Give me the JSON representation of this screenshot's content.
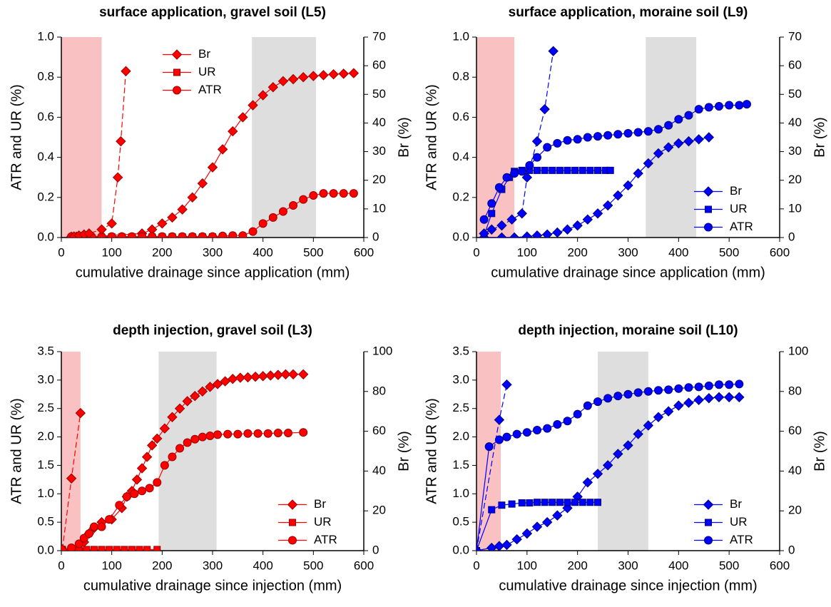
{
  "chart_data": [
    {
      "type": "line",
      "title": "surface application, gravel soil (L5)",
      "xlabel": "cumulative drainage since application (mm)",
      "ylabel": "ATR and UR (%)",
      "y2label": "Br (%)",
      "xlim": [
        0,
        600
      ],
      "xticks": [
        0,
        100,
        200,
        300,
        400,
        500,
        600
      ],
      "ylim": [
        0,
        1
      ],
      "yticks": [
        {
          "value": 0,
          "label": "0.0"
        },
        0.2,
        0.4,
        0.6,
        0.8,
        {
          "value": 1,
          "label": "1.0"
        }
      ],
      "y2lim": [
        0,
        70
      ],
      "y2ticks": [
        0,
        10,
        20,
        30,
        40,
        50,
        60,
        70
      ],
      "legend": "upper center",
      "shaded": [
        {
          "range": [
            0,
            80
          ],
          "color": "#f9c1c1"
        },
        {
          "range": [
            378,
            505
          ],
          "color": "#dedede"
        }
      ],
      "series": [
        {
          "name": "Br",
          "color": "#ff0000",
          "marker": "diamond",
          "axis": "y2",
          "x": [
            20,
            30,
            40,
            50,
            60,
            160,
            180,
            200,
            220,
            240,
            260,
            280,
            300,
            320,
            340,
            360,
            380,
            400,
            420,
            440,
            460,
            480,
            500,
            520,
            540,
            560,
            580
          ],
          "values": [
            0.3,
            0.3,
            0.3,
            0.3,
            0.3,
            1.4,
            2.8,
            4.9,
            7,
            9.8,
            14,
            18.9,
            24.5,
            30.8,
            37.1,
            42,
            46.2,
            49.7,
            52.5,
            54.6,
            55.3,
            56,
            56.4,
            56.7,
            57,
            57.2,
            57.4
          ]
        },
        {
          "name": "UR",
          "color": "#ff0000",
          "marker": "square",
          "axis": "y",
          "x": [
            100,
            120,
            140,
            160,
            180,
            200,
            220,
            240,
            260,
            280,
            300,
            320,
            340
          ],
          "values": [
            0.003,
            0.003,
            0.003,
            0.003,
            0.003,
            0.003,
            0.003,
            0.003,
            0.003,
            0.003,
            0.003,
            0.003,
            0.003
          ]
        },
        {
          "name": "ATR",
          "color": "#ff0000",
          "marker": "circle",
          "axis": "y",
          "x": [
            20,
            40,
            60,
            80,
            100,
            120,
            140,
            160,
            180,
            200,
            220,
            240,
            260,
            280,
            300,
            320,
            340,
            360,
            380,
            400,
            420,
            440,
            460,
            480,
            500,
            520,
            540,
            560,
            580
          ],
          "values": [
            0.005,
            0.005,
            0.005,
            0.005,
            0.005,
            0.005,
            0.005,
            0.005,
            0.005,
            0.005,
            0.005,
            0.005,
            0.005,
            0.005,
            0.005,
            0.008,
            0.01,
            0.01,
            0.03,
            0.07,
            0.1,
            0.13,
            0.16,
            0.19,
            0.21,
            0.22,
            0.22,
            0.22,
            0.22
          ]
        },
        {
          "color": "#ff0000",
          "marker": "diamond",
          "axis": "y",
          "style": "dashed",
          "x": [
            25,
            35,
            45,
            55,
            80,
            100,
            112,
            118,
            128
          ],
          "values": [
            0.005,
            0.01,
            0.015,
            0.02,
            0.04,
            0.07,
            0.3,
            0.48,
            0.83
          ]
        }
      ]
    },
    {
      "type": "line",
      "title": "surface application, moraine soil (L9)",
      "xlabel": "cumulative drainage since application (mm)",
      "ylabel": "ATR and UR (%)",
      "y2label": "Br (%)",
      "xlim": [
        0,
        600
      ],
      "xticks": [
        0,
        100,
        200,
        300,
        400,
        500,
        600
      ],
      "ylim": [
        0,
        1
      ],
      "yticks": [
        {
          "value": 0,
          "label": "0.0"
        },
        0.2,
        0.4,
        0.6,
        0.8,
        {
          "value": 1,
          "label": "1.0"
        }
      ],
      "y2lim": [
        0,
        70
      ],
      "y2ticks": [
        0,
        10,
        20,
        30,
        40,
        50,
        60,
        70
      ],
      "legend": "lower right",
      "shaded": [
        {
          "range": [
            0,
            75
          ],
          "color": "#f9c1c1"
        },
        {
          "range": [
            335,
            435
          ],
          "color": "#dedede"
        }
      ],
      "series": [
        {
          "name": "Br",
          "color": "#0000ff",
          "marker": "diamond",
          "axis": "y2",
          "x": [
            15,
            50,
            75,
            100,
            120,
            140,
            160,
            180,
            200,
            220,
            240,
            260,
            280,
            300,
            320,
            340,
            360,
            380,
            400,
            420,
            440,
            460
          ],
          "values": [
            0,
            0,
            0,
            0.35,
            0.7,
            1.05,
            1.75,
            2.8,
            4.2,
            6.3,
            8.4,
            11.2,
            14.7,
            18.2,
            22.4,
            25.9,
            29.4,
            31.5,
            32.9,
            33.6,
            34.3,
            35
          ]
        },
        {
          "name": "UR",
          "color": "#0000ff",
          "marker": "square",
          "axis": "y",
          "x": [
            15,
            30,
            50,
            65,
            75,
            90,
            105,
            120,
            135,
            150,
            165,
            180,
            195,
            210,
            225,
            240,
            255,
            265
          ],
          "values": [
            0.01,
            0.12,
            0.24,
            0.3,
            0.33,
            0.335,
            0.335,
            0.335,
            0.335,
            0.335,
            0.335,
            0.335,
            0.335,
            0.335,
            0.335,
            0.335,
            0.335,
            0.335
          ]
        },
        {
          "name": "ATR",
          "color": "#0000ff",
          "marker": "circle",
          "axis": "y",
          "x": [
            15,
            30,
            45,
            60,
            75,
            90,
            105,
            120,
            140,
            160,
            180,
            200,
            220,
            240,
            260,
            280,
            300,
            320,
            340,
            360,
            380,
            400,
            420,
            440,
            460,
            480,
            500,
            520,
            535
          ],
          "values": [
            0.09,
            0.17,
            0.25,
            0.3,
            0.32,
            0.33,
            0.36,
            0.4,
            0.45,
            0.47,
            0.485,
            0.49,
            0.5,
            0.505,
            0.51,
            0.515,
            0.52,
            0.525,
            0.53,
            0.54,
            0.56,
            0.59,
            0.61,
            0.64,
            0.65,
            0.655,
            0.66,
            0.66,
            0.665
          ]
        },
        {
          "color": "#0000ff",
          "marker": "diamond",
          "axis": "y",
          "style": "dashed",
          "x": [
            15,
            30,
            50,
            70,
            90,
            100,
            120,
            135,
            152
          ],
          "values": [
            0.02,
            0.04,
            0.06,
            0.09,
            0.12,
            0.3,
            0.48,
            0.64,
            0.93
          ]
        }
      ]
    },
    {
      "type": "line",
      "title": "depth injection, gravel soil (L3)",
      "xlabel": "cumulative drainage since injection (mm)",
      "ylabel": "ATR and UR (%)",
      "y2label": "Br (%)",
      "xlim": [
        0,
        600
      ],
      "xticks": [
        0,
        100,
        200,
        300,
        400,
        500,
        600
      ],
      "ylim": [
        0,
        3.5
      ],
      "yticks": [
        {
          "value": 0,
          "label": "0.0"
        },
        0.5,
        {
          "value": 1,
          "label": "1.0"
        },
        1.5,
        {
          "value": 2,
          "label": "2.0"
        },
        2.5,
        {
          "value": 3,
          "label": "3.0"
        },
        3.5
      ],
      "y2lim": [
        0,
        100
      ],
      "y2ticks": [
        0,
        20,
        40,
        60,
        80,
        100
      ],
      "legend": "lower right",
      "shaded": [
        {
          "range": [
            0,
            38
          ],
          "color": "#f9c1c1"
        },
        {
          "range": [
            193,
            308
          ],
          "color": "#dedede"
        }
      ],
      "series": [
        {
          "name": "Br",
          "color": "#ff0000",
          "marker": "diamond",
          "axis": "y2",
          "x": [
            2,
            20,
            35,
            45,
            55,
            65,
            80,
            100,
            120,
            130,
            140,
            150,
            160,
            170,
            180,
            190,
            205,
            220,
            235,
            250,
            265,
            280,
            295,
            310,
            325,
            340,
            355,
            370,
            385,
            400,
            415,
            430,
            445,
            460,
            480
          ],
          "values": [
            0,
            0,
            0.86,
            4.3,
            8.6,
            11.4,
            14.3,
            15.7,
            21.4,
            27.1,
            30,
            35.7,
            41.4,
            47.1,
            52.9,
            56.3,
            61.4,
            67.1,
            71.4,
            75.1,
            77.7,
            80,
            82.3,
            83.7,
            85.1,
            86.3,
            86.9,
            87.1,
            87.4,
            87.7,
            88,
            88.3,
            88.6,
            88.6,
            88.6
          ]
        },
        {
          "name": "UR",
          "color": "#ff0000",
          "marker": "square",
          "axis": "y",
          "x": [
            2,
            20,
            35,
            50,
            65,
            80,
            95,
            110,
            125,
            140,
            155,
            170,
            190
          ],
          "values": [
            0.02,
            0.02,
            0.02,
            0.02,
            0.02,
            0.02,
            0.02,
            0.02,
            0.02,
            0.02,
            0.02,
            0.02,
            0.02
          ]
        },
        {
          "name": "ATR",
          "color": "#ff0000",
          "marker": "circle",
          "axis": "y",
          "x": [
            2,
            20,
            35,
            45,
            55,
            65,
            80,
            95,
            115,
            130,
            145,
            160,
            175,
            190,
            205,
            220,
            235,
            250,
            265,
            280,
            295,
            310,
            330,
            350,
            370,
            390,
            410,
            430,
            450,
            480
          ],
          "values": [
            0.02,
            0.05,
            0.12,
            0.22,
            0.3,
            0.42,
            0.42,
            0.55,
            0.8,
            0.95,
            1.0,
            1.05,
            1.1,
            1.2,
            1.5,
            1.65,
            1.8,
            1.9,
            1.96,
            2.0,
            2.02,
            2.04,
            2.05,
            2.05,
            2.06,
            2.06,
            2.06,
            2.07,
            2.07,
            2.08
          ]
        },
        {
          "color": "#ff0000",
          "marker": "diamond",
          "axis": "y",
          "style": "dashed",
          "x": [
            2,
            20,
            38
          ],
          "values": [
            0.02,
            1.27,
            2.42
          ]
        }
      ]
    },
    {
      "type": "line",
      "title": "depth injection, moraine soil (L10)",
      "xlabel": "cumulative drainage since injection (mm)",
      "ylabel": "ATR and UR (%)",
      "y2label": "Br (%)",
      "xlim": [
        0,
        600
      ],
      "xticks": [
        0,
        100,
        200,
        300,
        400,
        500,
        600
      ],
      "ylim": [
        0,
        3.5
      ],
      "yticks": [
        {
          "value": 0,
          "label": "0.0"
        },
        0.5,
        {
          "value": 1,
          "label": "1.0"
        },
        1.5,
        {
          "value": 2,
          "label": "2.0"
        },
        2.5,
        {
          "value": 3,
          "label": "3.0"
        },
        3.5
      ],
      "y2lim": [
        0,
        100
      ],
      "y2ticks": [
        0,
        20,
        40,
        60,
        80,
        100
      ],
      "legend": "lower right",
      "shaded": [
        {
          "range": [
            0,
            48
          ],
          "color": "#f9c1c1"
        },
        {
          "range": [
            240,
            340
          ],
          "color": "#dedede"
        }
      ],
      "series": [
        {
          "name": "Br",
          "color": "#0000ff",
          "marker": "diamond",
          "axis": "y2",
          "x": [
            0,
            30,
            45,
            60,
            80,
            100,
            120,
            140,
            160,
            180,
            200,
            220,
            240,
            260,
            280,
            300,
            320,
            340,
            360,
            380,
            400,
            420,
            440,
            460,
            480,
            500,
            520
          ],
          "values": [
            0,
            1.4,
            2.3,
            2.9,
            5.7,
            8.6,
            12,
            14.3,
            17.7,
            21.4,
            27.1,
            34.3,
            38.6,
            42.9,
            48.6,
            52.9,
            58.6,
            62.9,
            67.1,
            70,
            72.9,
            74.3,
            75.7,
            76.6,
            77.1,
            77.1,
            77.1
          ]
        },
        {
          "name": "UR",
          "color": "#0000ff",
          "marker": "square",
          "axis": "y",
          "x": [
            0,
            30,
            50,
            70,
            90,
            105,
            120,
            135,
            150,
            165,
            180,
            195,
            210,
            225,
            240
          ],
          "values": [
            0,
            0.72,
            0.8,
            0.82,
            0.84,
            0.84,
            0.85,
            0.85,
            0.85,
            0.85,
            0.85,
            0.85,
            0.85,
            0.85,
            0.85
          ]
        },
        {
          "name": "ATR",
          "color": "#0000ff",
          "marker": "circle",
          "axis": "y",
          "x": [
            0,
            25,
            45,
            60,
            80,
            100,
            120,
            140,
            160,
            180,
            200,
            220,
            240,
            260,
            280,
            300,
            320,
            340,
            360,
            380,
            400,
            420,
            440,
            460,
            480,
            500,
            520
          ],
          "values": [
            0,
            1.83,
            1.95,
            2.0,
            2.05,
            2.08,
            2.12,
            2.15,
            2.22,
            2.28,
            2.4,
            2.55,
            2.62,
            2.68,
            2.72,
            2.75,
            2.78,
            2.8,
            2.82,
            2.83,
            2.85,
            2.87,
            2.88,
            2.9,
            2.92,
            2.92,
            2.93
          ]
        },
        {
          "color": "#0000ff",
          "marker": "diamond",
          "axis": "y",
          "style": "dashed",
          "x": [
            0,
            45,
            60
          ],
          "values": [
            0,
            2.3,
            2.92
          ]
        }
      ]
    }
  ]
}
